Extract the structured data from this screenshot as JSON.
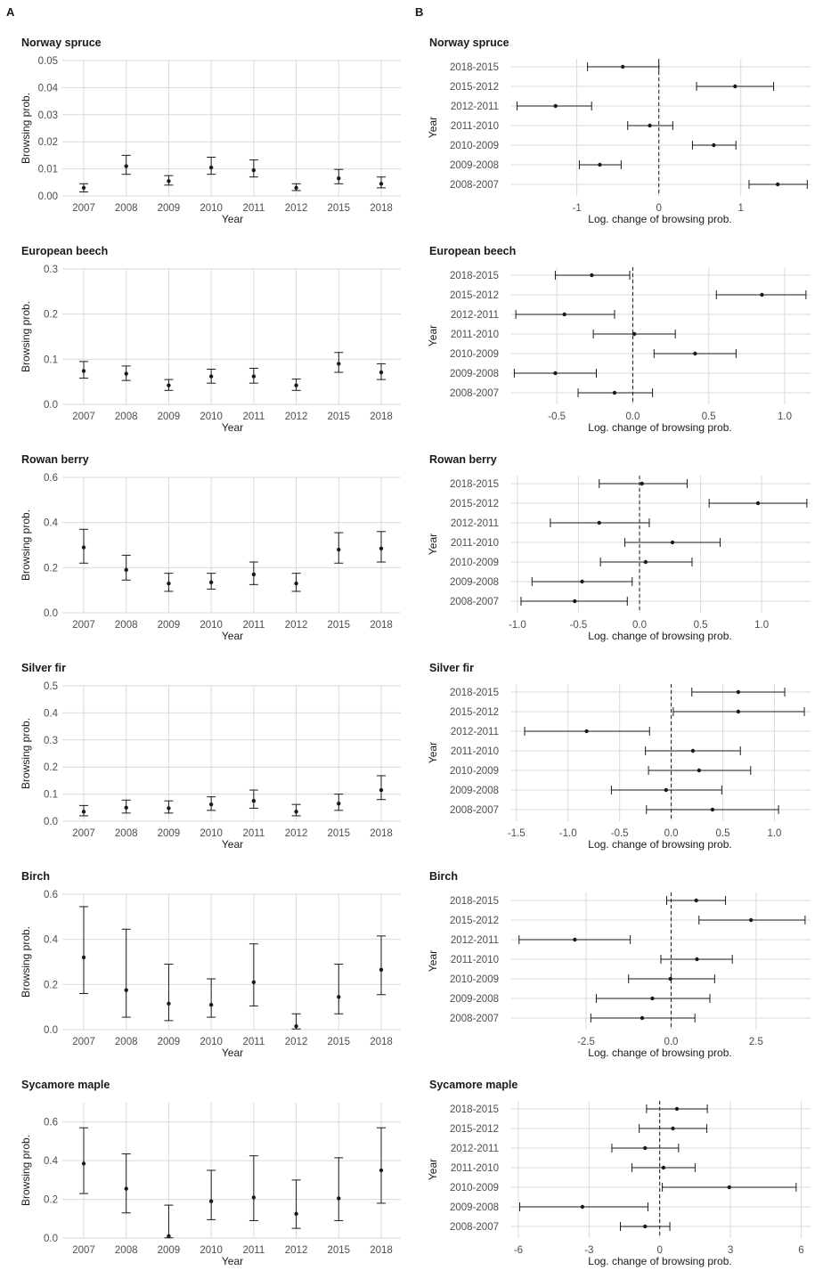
{
  "panel_labels": {
    "left": "A",
    "right": "B"
  },
  "colors": {
    "grid": "#d9d9d9",
    "ink": "#1a1a1a",
    "axis_text": "#4d4d4d"
  },
  "chart_data": [
    {
      "type": "scatter",
      "subtype": "point-errorbar",
      "title": "Norway spruce",
      "xlabel": "Year",
      "ylabel": "Browsing prob.",
      "categories": [
        "2007",
        "2008",
        "2009",
        "2010",
        "2011",
        "2012",
        "2015",
        "2018"
      ],
      "values": [
        0.003,
        0.011,
        0.0055,
        0.0105,
        0.0095,
        0.003,
        0.0065,
        0.0045
      ],
      "lower": [
        0.0015,
        0.008,
        0.004,
        0.008,
        0.007,
        0.002,
        0.0045,
        0.003
      ],
      "upper": [
        0.0045,
        0.015,
        0.0075,
        0.0143,
        0.0133,
        0.0045,
        0.0098,
        0.007
      ],
      "ylim": [
        0,
        0.05
      ],
      "yticks": [
        0,
        0.01,
        0.02,
        0.03,
        0.04,
        0.05
      ],
      "ytick_labels": [
        "0.00",
        "0.01",
        "0.02",
        "0.03",
        "0.04",
        "0.05"
      ]
    },
    {
      "type": "scatter",
      "subtype": "point-errorbar",
      "title": "European beech",
      "xlabel": "Year",
      "ylabel": "Browsing prob.",
      "categories": [
        "2007",
        "2008",
        "2009",
        "2010",
        "2011",
        "2012",
        "2015",
        "2018"
      ],
      "values": [
        0.074,
        0.068,
        0.042,
        0.062,
        0.062,
        0.042,
        0.09,
        0.071
      ],
      "lower": [
        0.058,
        0.053,
        0.031,
        0.047,
        0.047,
        0.031,
        0.071,
        0.055
      ],
      "upper": [
        0.095,
        0.085,
        0.055,
        0.078,
        0.08,
        0.056,
        0.115,
        0.09
      ],
      "ylim": [
        0,
        0.3
      ],
      "yticks": [
        0,
        0.1,
        0.2,
        0.3
      ],
      "ytick_labels": [
        "0.0",
        "0.1",
        "0.2",
        "0.3"
      ]
    },
    {
      "type": "scatter",
      "subtype": "point-errorbar",
      "title": "Rowan berry",
      "xlabel": "Year",
      "ylabel": "Browsing prob.",
      "categories": [
        "2007",
        "2008",
        "2009",
        "2010",
        "2011",
        "2012",
        "2015",
        "2018"
      ],
      "values": [
        0.29,
        0.19,
        0.13,
        0.135,
        0.17,
        0.13,
        0.28,
        0.285
      ],
      "lower": [
        0.22,
        0.145,
        0.095,
        0.105,
        0.125,
        0.095,
        0.22,
        0.225
      ],
      "upper": [
        0.37,
        0.255,
        0.175,
        0.175,
        0.225,
        0.175,
        0.355,
        0.36
      ],
      "ylim": [
        0,
        0.6
      ],
      "yticks": [
        0,
        0.2,
        0.4,
        0.6
      ],
      "ytick_labels": [
        "0.0",
        "0.2",
        "0.4",
        "0.6"
      ]
    },
    {
      "type": "scatter",
      "subtype": "point-errorbar",
      "title": "Silver fir",
      "xlabel": "Year",
      "ylabel": "Browsing prob.",
      "categories": [
        "2007",
        "2008",
        "2009",
        "2010",
        "2011",
        "2012",
        "2015",
        "2018"
      ],
      "values": [
        0.035,
        0.05,
        0.048,
        0.062,
        0.075,
        0.035,
        0.065,
        0.115
      ],
      "lower": [
        0.02,
        0.03,
        0.03,
        0.04,
        0.048,
        0.02,
        0.04,
        0.08
      ],
      "upper": [
        0.058,
        0.078,
        0.075,
        0.09,
        0.115,
        0.062,
        0.1,
        0.168
      ],
      "ylim": [
        0,
        0.5
      ],
      "yticks": [
        0,
        0.1,
        0.2,
        0.3,
        0.4,
        0.5
      ],
      "ytick_labels": [
        "0.0",
        "0.1",
        "0.2",
        "0.3",
        "0.4",
        "0.5"
      ]
    },
    {
      "type": "scatter",
      "subtype": "point-errorbar",
      "title": "Birch",
      "xlabel": "Year",
      "ylabel": "Browsing prob.",
      "categories": [
        "2007",
        "2008",
        "2009",
        "2010",
        "2011",
        "2012",
        "2015",
        "2018"
      ],
      "values": [
        0.32,
        0.175,
        0.115,
        0.11,
        0.21,
        0.015,
        0.145,
        0.265
      ],
      "lower": [
        0.16,
        0.055,
        0.04,
        0.055,
        0.105,
        0.003,
        0.07,
        0.155
      ],
      "upper": [
        0.545,
        0.445,
        0.29,
        0.225,
        0.38,
        0.07,
        0.29,
        0.415
      ],
      "ylim": [
        0,
        0.6
      ],
      "yticks": [
        0,
        0.2,
        0.4,
        0.6
      ],
      "ytick_labels": [
        "0.0",
        "0.2",
        "0.4",
        "0.6"
      ]
    },
    {
      "type": "scatter",
      "subtype": "point-errorbar",
      "title": "Sycamore maple",
      "xlabel": "Year",
      "ylabel": "Browsing prob.",
      "categories": [
        "2007",
        "2008",
        "2009",
        "2010",
        "2011",
        "2012",
        "2015",
        "2018"
      ],
      "values": [
        0.385,
        0.255,
        0.01,
        0.19,
        0.21,
        0.125,
        0.205,
        0.35
      ],
      "lower": [
        0.23,
        0.13,
        0.001,
        0.095,
        0.09,
        0.05,
        0.09,
        0.18
      ],
      "upper": [
        0.57,
        0.435,
        0.17,
        0.35,
        0.425,
        0.3,
        0.415,
        0.57
      ],
      "ylim": [
        0,
        0.7
      ],
      "yticks": [
        0,
        0.2,
        0.4,
        0.6
      ],
      "ytick_labels": [
        "0.0",
        "0.2",
        "0.4",
        "0.6"
      ]
    },
    {
      "type": "scatter",
      "subtype": "forest",
      "title": "Norway spruce",
      "xlabel": "Log. change of browsing prob.",
      "ylabel": "Year",
      "categories": [
        "2018-2015",
        "2015-2012",
        "2012-2011",
        "2011-2010",
        "2010-2009",
        "2009-2008",
        "2008-2007"
      ],
      "values": [
        -0.44,
        0.93,
        -1.26,
        -0.11,
        0.67,
        -0.72,
        1.45
      ],
      "lower": [
        -0.87,
        0.46,
        -1.73,
        -0.38,
        0.41,
        -0.97,
        1.1
      ],
      "upper": [
        0.0,
        1.4,
        -0.82,
        0.17,
        0.94,
        -0.46,
        1.81
      ],
      "xlim": [
        -1.8,
        1.85
      ],
      "xticks": [
        -1,
        0,
        1
      ],
      "xtick_labels": [
        "-1",
        "0",
        "1"
      ]
    },
    {
      "type": "scatter",
      "subtype": "forest",
      "title": "European beech",
      "xlabel": "Log. change of browsing prob.",
      "ylabel": "Year",
      "categories": [
        "2018-2015",
        "2015-2012",
        "2012-2011",
        "2011-2010",
        "2010-2009",
        "2009-2008",
        "2008-2007"
      ],
      "values": [
        -0.27,
        0.85,
        -0.45,
        0.01,
        0.41,
        -0.51,
        -0.12
      ],
      "lower": [
        -0.51,
        0.55,
        -0.77,
        -0.26,
        0.14,
        -0.78,
        -0.36
      ],
      "upper": [
        -0.02,
        1.14,
        -0.12,
        0.28,
        0.68,
        -0.24,
        0.13
      ],
      "xlim": [
        -0.8,
        1.17
      ],
      "xticks": [
        -0.5,
        0,
        0.5,
        1
      ],
      "xtick_labels": [
        "-0.5",
        "0.0",
        "0.5",
        "1.0"
      ]
    },
    {
      "type": "scatter",
      "subtype": "forest",
      "title": "Rowan berry",
      "xlabel": "Log. change of browsing prob.",
      "ylabel": "Year",
      "categories": [
        "2018-2015",
        "2015-2012",
        "2012-2011",
        "2011-2010",
        "2010-2009",
        "2009-2008",
        "2008-2007"
      ],
      "values": [
        0.02,
        0.97,
        -0.33,
        0.27,
        0.05,
        -0.47,
        -0.53
      ],
      "lower": [
        -0.33,
        0.57,
        -0.73,
        -0.12,
        -0.32,
        -0.88,
        -0.97
      ],
      "upper": [
        0.39,
        1.37,
        0.08,
        0.66,
        0.43,
        -0.06,
        -0.1
      ],
      "xlim": [
        -1.05,
        1.4
      ],
      "xticks": [
        -1,
        -0.5,
        0,
        0.5,
        1
      ],
      "xtick_labels": [
        "-1.0",
        "-0.5",
        "0.0",
        "0.5",
        "1.0"
      ]
    },
    {
      "type": "scatter",
      "subtype": "forest",
      "title": "Silver fir",
      "xlabel": "Log. change of browsing prob.",
      "ylabel": "Year",
      "categories": [
        "2018-2015",
        "2015-2012",
        "2012-2011",
        "2011-2010",
        "2010-2009",
        "2009-2008",
        "2008-2007"
      ],
      "values": [
        0.65,
        0.65,
        -0.82,
        0.21,
        0.27,
        -0.05,
        0.4
      ],
      "lower": [
        0.2,
        0.02,
        -1.42,
        -0.25,
        -0.22,
        -0.58,
        -0.24
      ],
      "upper": [
        1.1,
        1.29,
        -0.21,
        0.67,
        0.77,
        0.49,
        1.04
      ],
      "xlim": [
        -1.55,
        1.35
      ],
      "xticks": [
        -1.5,
        -1,
        -0.5,
        0,
        0.5,
        1
      ],
      "xtick_labels": [
        "-1.5",
        "-1.0",
        "-0.5",
        "0.0",
        "0.5",
        "1.0"
      ]
    },
    {
      "type": "scatter",
      "subtype": "forest",
      "title": "Birch",
      "xlabel": "Log. change of browsing prob.",
      "ylabel": "Year",
      "categories": [
        "2018-2015",
        "2015-2012",
        "2012-2011",
        "2011-2010",
        "2010-2009",
        "2009-2008",
        "2008-2007"
      ],
      "values": [
        0.74,
        2.35,
        -2.83,
        0.76,
        -0.02,
        -0.55,
        -0.85
      ],
      "lower": [
        -0.13,
        0.82,
        -4.47,
        -0.3,
        -1.25,
        -2.2,
        -2.36
      ],
      "upper": [
        1.6,
        3.94,
        -1.2,
        1.8,
        1.28,
        1.14,
        0.7
      ],
      "xlim": [
        -4.7,
        4.1
      ],
      "xticks": [
        -2.5,
        0,
        2.5
      ],
      "xtick_labels": [
        "-2.5",
        "0.0",
        "2.5"
      ]
    },
    {
      "type": "scatter",
      "subtype": "forest",
      "title": "Sycamore maple",
      "xlabel": "Log. change of browsing prob.",
      "ylabel": "Year",
      "categories": [
        "2018-2015",
        "2015-2012",
        "2012-2011",
        "2011-2010",
        "2010-2009",
        "2009-2008",
        "2008-2007"
      ],
      "values": [
        0.73,
        0.56,
        -0.62,
        0.16,
        2.95,
        -3.28,
        -0.62
      ],
      "lower": [
        -0.56,
        -0.87,
        -2.03,
        -1.18,
        0.11,
        -5.94,
        -1.67
      ],
      "upper": [
        2.02,
        2.0,
        0.8,
        1.5,
        5.79,
        -0.5,
        0.43
      ],
      "xlim": [
        -6.3,
        6.4
      ],
      "xticks": [
        -6,
        -3,
        0,
        3,
        6
      ],
      "xtick_labels": [
        "-6",
        "-3",
        "0",
        "3",
        "6"
      ]
    }
  ]
}
